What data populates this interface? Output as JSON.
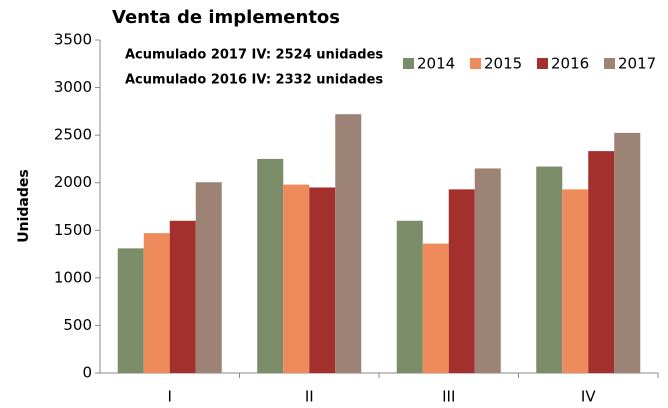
{
  "chart_data": {
    "type": "bar",
    "title": "Venta de implementos",
    "y_label": "Unidades",
    "annotations": [
      "Acumulado 2017 IV: 2524 unidades",
      "Acumulado 2016 IV: 2332 unidades"
    ],
    "categories": [
      "I",
      "II",
      "III",
      "IV"
    ],
    "series": [
      {
        "name": "2014",
        "color": "#7b8c69",
        "values": [
          1310,
          2250,
          1600,
          2170
        ]
      },
      {
        "name": "2015",
        "color": "#ef8a5a",
        "values": [
          1470,
          1980,
          1360,
          1930
        ]
      },
      {
        "name": "2016",
        "color": "#a3302c",
        "values": [
          1600,
          1950,
          1930,
          2332
        ]
      },
      {
        "name": "2017",
        "color": "#9d8276",
        "values": [
          2005,
          2720,
          2150,
          2524
        ]
      }
    ],
    "ylim": [
      0,
      3500
    ],
    "yticks": [
      0,
      500,
      1000,
      1500,
      2000,
      2500,
      3000,
      3500
    ],
    "grid": false,
    "legend": "top-right"
  }
}
